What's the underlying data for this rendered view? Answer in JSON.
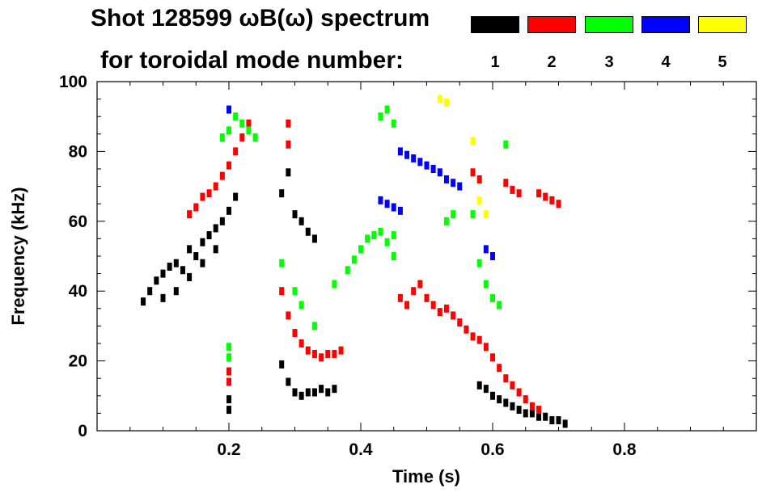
{
  "title": {
    "line1": "Shot 128599 ωB(ω) spectrum",
    "line2": "for toroidal mode number:"
  },
  "legend": [
    {
      "n": "1",
      "color": "#000000"
    },
    {
      "n": "2",
      "color": "#ff0000"
    },
    {
      "n": "3",
      "color": "#00ff00"
    },
    {
      "n": "4",
      "color": "#0000ff"
    },
    {
      "n": "5",
      "color": "#ffff00"
    }
  ],
  "chart_data": {
    "type": "scatter",
    "title": "Shot 128599 ωB(ω) spectrum for toroidal mode number: 1 2 3 4 5",
    "xlabel": "Time (s)",
    "ylabel": "Frequency (kHz)",
    "xlim": [
      0.0,
      1.0
    ],
    "ylim": [
      0,
      100
    ],
    "xticks": [
      "0.2",
      "0.4",
      "0.6",
      "0.8"
    ],
    "xtick_values": [
      0.2,
      0.4,
      0.6,
      0.8
    ],
    "yticks": [
      "0",
      "20",
      "40",
      "60",
      "80",
      "100"
    ],
    "ytick_values": [
      0,
      20,
      40,
      60,
      80,
      100
    ],
    "series": [
      {
        "name": "n=1",
        "color": "#000000",
        "points": [
          [
            0.07,
            37
          ],
          [
            0.08,
            40
          ],
          [
            0.09,
            43
          ],
          [
            0.1,
            45
          ],
          [
            0.11,
            47
          ],
          [
            0.12,
            48
          ],
          [
            0.13,
            46
          ],
          [
            0.14,
            44
          ],
          [
            0.15,
            50
          ],
          [
            0.16,
            54
          ],
          [
            0.17,
            56
          ],
          [
            0.18,
            58
          ],
          [
            0.19,
            60
          ],
          [
            0.2,
            63
          ],
          [
            0.21,
            67
          ],
          [
            0.1,
            38
          ],
          [
            0.12,
            40
          ],
          [
            0.14,
            52
          ],
          [
            0.16,
            48
          ],
          [
            0.18,
            52
          ],
          [
            0.2,
            9
          ],
          [
            0.2,
            6
          ],
          [
            0.28,
            68
          ],
          [
            0.29,
            74
          ],
          [
            0.3,
            62
          ],
          [
            0.31,
            60
          ],
          [
            0.32,
            57
          ],
          [
            0.33,
            55
          ],
          [
            0.28,
            19
          ],
          [
            0.29,
            14
          ],
          [
            0.3,
            11
          ],
          [
            0.31,
            10
          ],
          [
            0.32,
            11
          ],
          [
            0.33,
            11
          ],
          [
            0.34,
            12
          ],
          [
            0.35,
            11
          ],
          [
            0.36,
            12
          ],
          [
            0.58,
            13
          ],
          [
            0.59,
            12
          ],
          [
            0.6,
            10
          ],
          [
            0.61,
            9
          ],
          [
            0.62,
            8
          ],
          [
            0.63,
            7
          ],
          [
            0.64,
            6
          ],
          [
            0.65,
            5
          ],
          [
            0.66,
            5
          ],
          [
            0.67,
            4
          ],
          [
            0.68,
            4
          ],
          [
            0.69,
            3
          ],
          [
            0.7,
            3
          ],
          [
            0.71,
            2
          ]
        ]
      },
      {
        "name": "n=2",
        "color": "#ff0000",
        "points": [
          [
            0.14,
            62
          ],
          [
            0.15,
            64
          ],
          [
            0.16,
            67
          ],
          [
            0.17,
            68
          ],
          [
            0.18,
            70
          ],
          [
            0.19,
            73
          ],
          [
            0.2,
            76
          ],
          [
            0.21,
            80
          ],
          [
            0.22,
            84
          ],
          [
            0.23,
            88
          ],
          [
            0.2,
            17
          ],
          [
            0.2,
            14
          ],
          [
            0.28,
            40
          ],
          [
            0.29,
            33
          ],
          [
            0.3,
            28
          ],
          [
            0.31,
            25
          ],
          [
            0.32,
            23
          ],
          [
            0.33,
            22
          ],
          [
            0.34,
            21
          ],
          [
            0.35,
            22
          ],
          [
            0.36,
            22
          ],
          [
            0.37,
            23
          ],
          [
            0.29,
            88
          ],
          [
            0.29,
            82
          ],
          [
            0.46,
            38
          ],
          [
            0.47,
            36
          ],
          [
            0.48,
            40
          ],
          [
            0.49,
            42
          ],
          [
            0.5,
            38
          ],
          [
            0.51,
            36
          ],
          [
            0.52,
            34
          ],
          [
            0.53,
            35
          ],
          [
            0.54,
            33
          ],
          [
            0.55,
            31
          ],
          [
            0.56,
            29
          ],
          [
            0.57,
            27
          ],
          [
            0.58,
            26
          ],
          [
            0.59,
            24
          ],
          [
            0.6,
            21
          ],
          [
            0.61,
            18
          ],
          [
            0.62,
            15
          ],
          [
            0.63,
            13
          ],
          [
            0.64,
            11
          ],
          [
            0.65,
            9
          ],
          [
            0.66,
            7
          ],
          [
            0.67,
            6
          ],
          [
            0.57,
            74
          ],
          [
            0.58,
            72
          ],
          [
            0.62,
            71
          ],
          [
            0.63,
            69
          ],
          [
            0.64,
            68
          ],
          [
            0.67,
            68
          ],
          [
            0.68,
            67
          ],
          [
            0.69,
            66
          ],
          [
            0.7,
            65
          ]
        ]
      },
      {
        "name": "n=3",
        "color": "#00ff00",
        "points": [
          [
            0.19,
            84
          ],
          [
            0.2,
            86
          ],
          [
            0.21,
            90
          ],
          [
            0.22,
            88
          ],
          [
            0.23,
            86
          ],
          [
            0.24,
            84
          ],
          [
            0.2,
            24
          ],
          [
            0.2,
            21
          ],
          [
            0.28,
            48
          ],
          [
            0.3,
            40
          ],
          [
            0.31,
            36
          ],
          [
            0.33,
            30
          ],
          [
            0.36,
            42
          ],
          [
            0.38,
            46
          ],
          [
            0.39,
            49
          ],
          [
            0.4,
            52
          ],
          [
            0.41,
            55
          ],
          [
            0.42,
            56
          ],
          [
            0.43,
            57
          ],
          [
            0.44,
            54
          ],
          [
            0.45,
            50
          ],
          [
            0.45,
            56
          ],
          [
            0.43,
            90
          ],
          [
            0.44,
            92
          ],
          [
            0.45,
            88
          ],
          [
            0.53,
            60
          ],
          [
            0.54,
            62
          ],
          [
            0.57,
            62
          ],
          [
            0.58,
            48
          ],
          [
            0.59,
            42
          ],
          [
            0.6,
            38
          ],
          [
            0.61,
            36
          ],
          [
            0.62,
            82
          ]
        ]
      },
      {
        "name": "n=4",
        "color": "#0000ff",
        "points": [
          [
            0.2,
            92
          ],
          [
            0.43,
            66
          ],
          [
            0.44,
            65
          ],
          [
            0.45,
            64
          ],
          [
            0.46,
            63
          ],
          [
            0.46,
            80
          ],
          [
            0.47,
            79
          ],
          [
            0.48,
            78
          ],
          [
            0.49,
            77
          ],
          [
            0.5,
            76
          ],
          [
            0.51,
            75
          ],
          [
            0.52,
            74
          ],
          [
            0.53,
            72
          ],
          [
            0.54,
            71
          ],
          [
            0.55,
            70
          ],
          [
            0.59,
            52
          ],
          [
            0.6,
            50
          ]
        ]
      },
      {
        "name": "n=5",
        "color": "#ffff00",
        "points": [
          [
            0.52,
            95
          ],
          [
            0.53,
            94
          ],
          [
            0.57,
            83
          ],
          [
            0.58,
            66
          ],
          [
            0.59,
            62
          ]
        ]
      }
    ]
  }
}
